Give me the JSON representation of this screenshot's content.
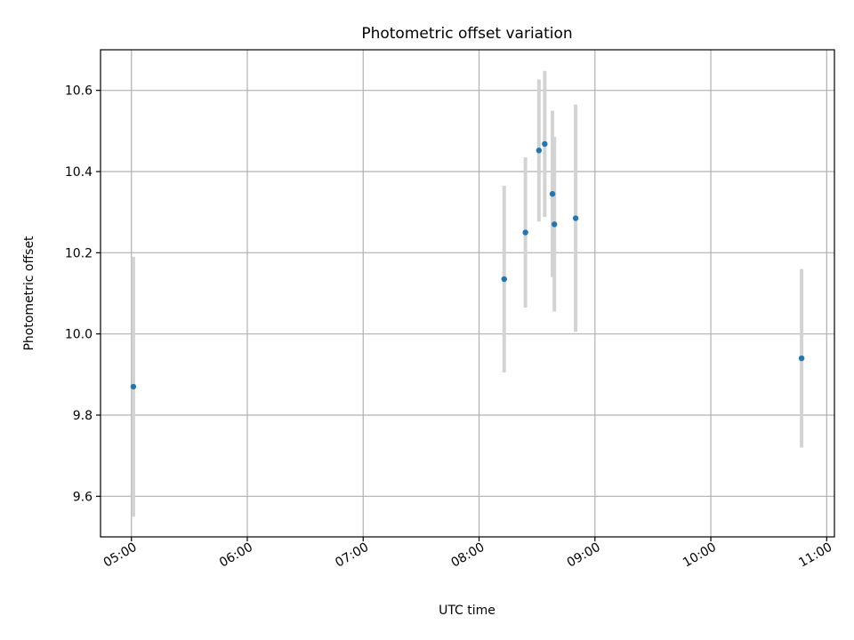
{
  "chart_data": {
    "type": "scatter",
    "title": "Photometric offset variation",
    "xlabel": "UTC time",
    "ylabel": "Photometric offset",
    "grid": true,
    "xlim": [
      "04:44",
      "11:04"
    ],
    "ylim": [
      9.5,
      10.7
    ],
    "x_ticks": [
      "05:00",
      "06:00",
      "07:00",
      "08:00",
      "09:00",
      "10:00",
      "11:00"
    ],
    "y_ticks": [
      9.6,
      9.8,
      10.0,
      10.2,
      10.4,
      10.6
    ],
    "y_tick_labels": [
      "9.6",
      "9.8",
      "10.0",
      "10.2",
      "10.4",
      "10.6"
    ],
    "point_color": "#1f77b4",
    "errorbar_color": "#d3d3d3",
    "series": [
      {
        "points": [
          {
            "x": "05:01",
            "y": 9.87,
            "err": 0.32
          },
          {
            "x": "08:13",
            "y": 10.135,
            "err": 0.23
          },
          {
            "x": "08:24",
            "y": 10.25,
            "err": 0.185
          },
          {
            "x": "08:31",
            "y": 10.452,
            "err": 0.175
          },
          {
            "x": "08:34",
            "y": 10.468,
            "err": 0.18
          },
          {
            "x": "08:38",
            "y": 10.345,
            "err": 0.205
          },
          {
            "x": "08:39",
            "y": 10.27,
            "err": 0.215
          },
          {
            "x": "08:50",
            "y": 10.285,
            "err": 0.28
          },
          {
            "x": "10:47",
            "y": 9.94,
            "err": 0.22
          }
        ]
      }
    ]
  }
}
